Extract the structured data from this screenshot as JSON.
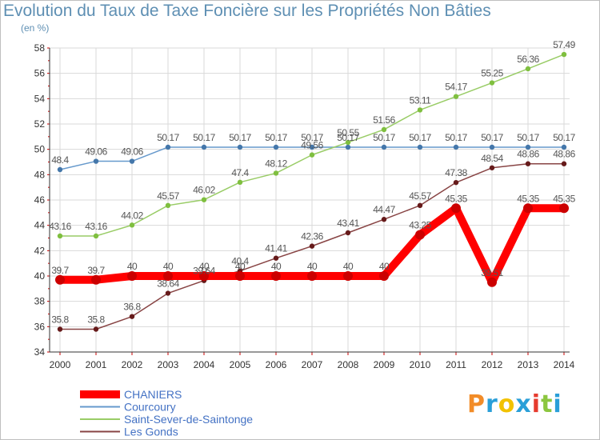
{
  "header": {
    "title": "Evolution du Taux de Taxe Foncière sur les Propriétés Non Bâties",
    "unit": "(en %)"
  },
  "brand": {
    "logo_text": "Proxiti",
    "logo_colors": [
      "#f28c28",
      "#2a9fd8",
      "#f2c200",
      "#2a9fd8",
      "#e63b2e",
      "#8cc63f",
      "#2a9fd8"
    ]
  },
  "colors": {
    "grid": "#d9d9d9",
    "axis": "#333333",
    "tick_mark": "#cc0000",
    "label_text": "#555555"
  },
  "chart_data": {
    "type": "line",
    "x": [
      "2000",
      "2001",
      "2002",
      "2003",
      "2004",
      "2005",
      "2006",
      "2007",
      "2008",
      "2009",
      "2010",
      "2011",
      "2012",
      "2013",
      "2014"
    ],
    "ylim": [
      34,
      58
    ],
    "yticks": [
      34,
      36,
      38,
      40,
      42,
      44,
      46,
      48,
      50,
      52,
      54,
      56,
      58
    ],
    "grid": true,
    "legend_position": "bottom-left",
    "series": [
      {
        "name": "CHANIERS",
        "color": "#ff0000",
        "marker": "#cc0000",
        "emphasis": true,
        "values": [
          39.7,
          39.7,
          40,
          40,
          40,
          40,
          40,
          40,
          40,
          40,
          43.25,
          45.35,
          39.51,
          45.35,
          45.35
        ],
        "labels": [
          "39.7",
          "39.7",
          "40",
          "40",
          "40",
          "40",
          "40",
          "40",
          "40",
          "40",
          "43.25",
          "45.35",
          "39.51",
          "45.35",
          "45.35"
        ]
      },
      {
        "name": "Courcoury",
        "color": "#6699cc",
        "marker": "#4477aa",
        "emphasis": false,
        "values": [
          48.4,
          49.06,
          49.06,
          50.17,
          50.17,
          50.17,
          50.17,
          50.17,
          50.17,
          50.17,
          50.17,
          50.17,
          50.17,
          50.17,
          50.17
        ],
        "labels": [
          "48.4",
          "49.06",
          "49.06",
          "50.17",
          "50.17",
          "50.17",
          "50.17",
          "50.17",
          "50.17",
          "50.17",
          "50.17",
          "50.17",
          "50.17",
          "50.17",
          "50.17"
        ]
      },
      {
        "name": "Saint-Sever-de-Saintonge",
        "color": "#99cc66",
        "marker": "#7fbf3f",
        "emphasis": false,
        "values": [
          43.16,
          43.16,
          44.02,
          45.57,
          46.02,
          47.4,
          48.12,
          49.56,
          50.55,
          51.56,
          53.11,
          54.17,
          55.25,
          56.36,
          57.49
        ],
        "labels": [
          "43.16",
          "43.16",
          "44.02",
          "45.57",
          "46.02",
          "47.4",
          "48.12",
          "49.56",
          "50.55",
          "51.56",
          "53.11",
          "54.17",
          "55.25",
          "56.36",
          "57.49"
        ]
      },
      {
        "name": "Les Gonds",
        "color": "#884444",
        "marker": "#661a1a",
        "emphasis": false,
        "values": [
          35.8,
          35.8,
          36.8,
          38.64,
          39.64,
          40.4,
          41.41,
          42.36,
          43.41,
          44.47,
          45.57,
          47.38,
          48.54,
          48.86,
          48.86
        ],
        "labels": [
          "35.8",
          "35.8",
          "36.8",
          "38.64",
          "39.64",
          "40.4",
          "41.41",
          "42.36",
          "43.41",
          "44.47",
          "45.57",
          "47.38",
          "48.54",
          "48.86",
          "48.86"
        ]
      }
    ]
  }
}
